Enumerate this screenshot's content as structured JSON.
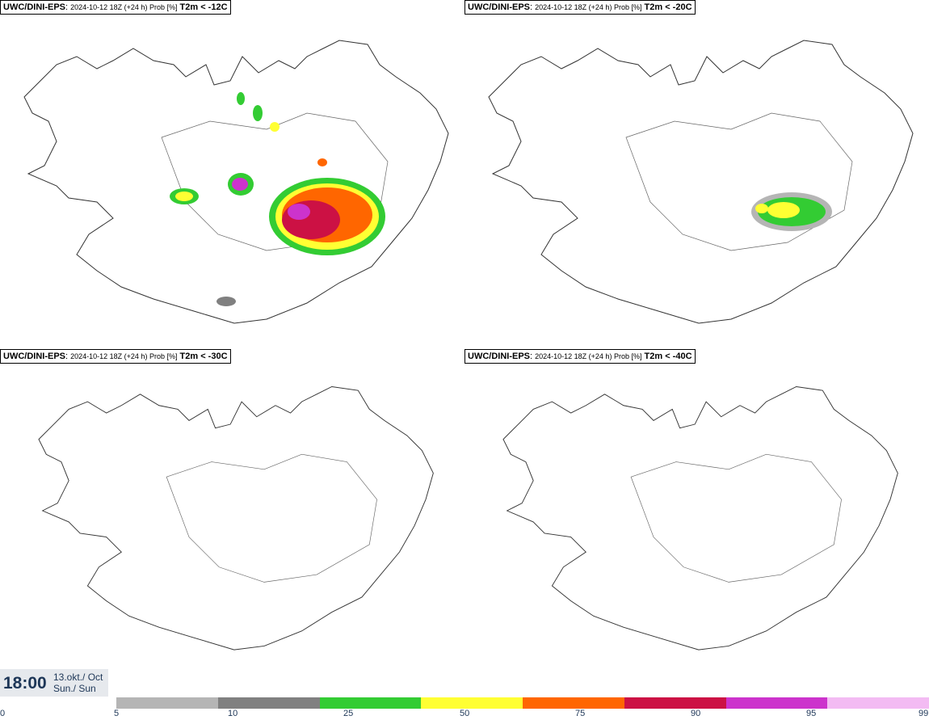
{
  "panels": [
    {
      "model": "UWC/DINI-EPS",
      "meta": "2024-10-12 18Z (+24 h) Prob [%]",
      "threshold": "T2m < -12C"
    },
    {
      "model": "UWC/DINI-EPS",
      "meta": "2024-10-12 18Z (+24 h) Prob [%]",
      "threshold": "T2m < -20C"
    },
    {
      "model": "UWC/DINI-EPS",
      "meta": "2024-10-12 18Z (+24 h) Prob [%]",
      "threshold": "T2m < -30C"
    },
    {
      "model": "UWC/DINI-EPS",
      "meta": "2024-10-12 18Z (+24 h) Prob [%]",
      "threshold": "T2m < -40C"
    }
  ],
  "valid_time": {
    "time": "18:00",
    "date_line1": "13.okt./ Oct",
    "date_line2": "Sun./ Sun"
  },
  "legend": {
    "ticks": [
      "0",
      "5",
      "10",
      "25",
      "50",
      "75",
      "90",
      "95",
      "99"
    ],
    "colors": [
      "#b5b5b5",
      "#808080",
      "#33cc33",
      "#ffff33",
      "#ff6600",
      "#cc1144",
      "#cc33cc",
      "#f3bbf3"
    ]
  },
  "colors": {
    "coast": "#333333",
    "text_blue": "#1d3657"
  }
}
